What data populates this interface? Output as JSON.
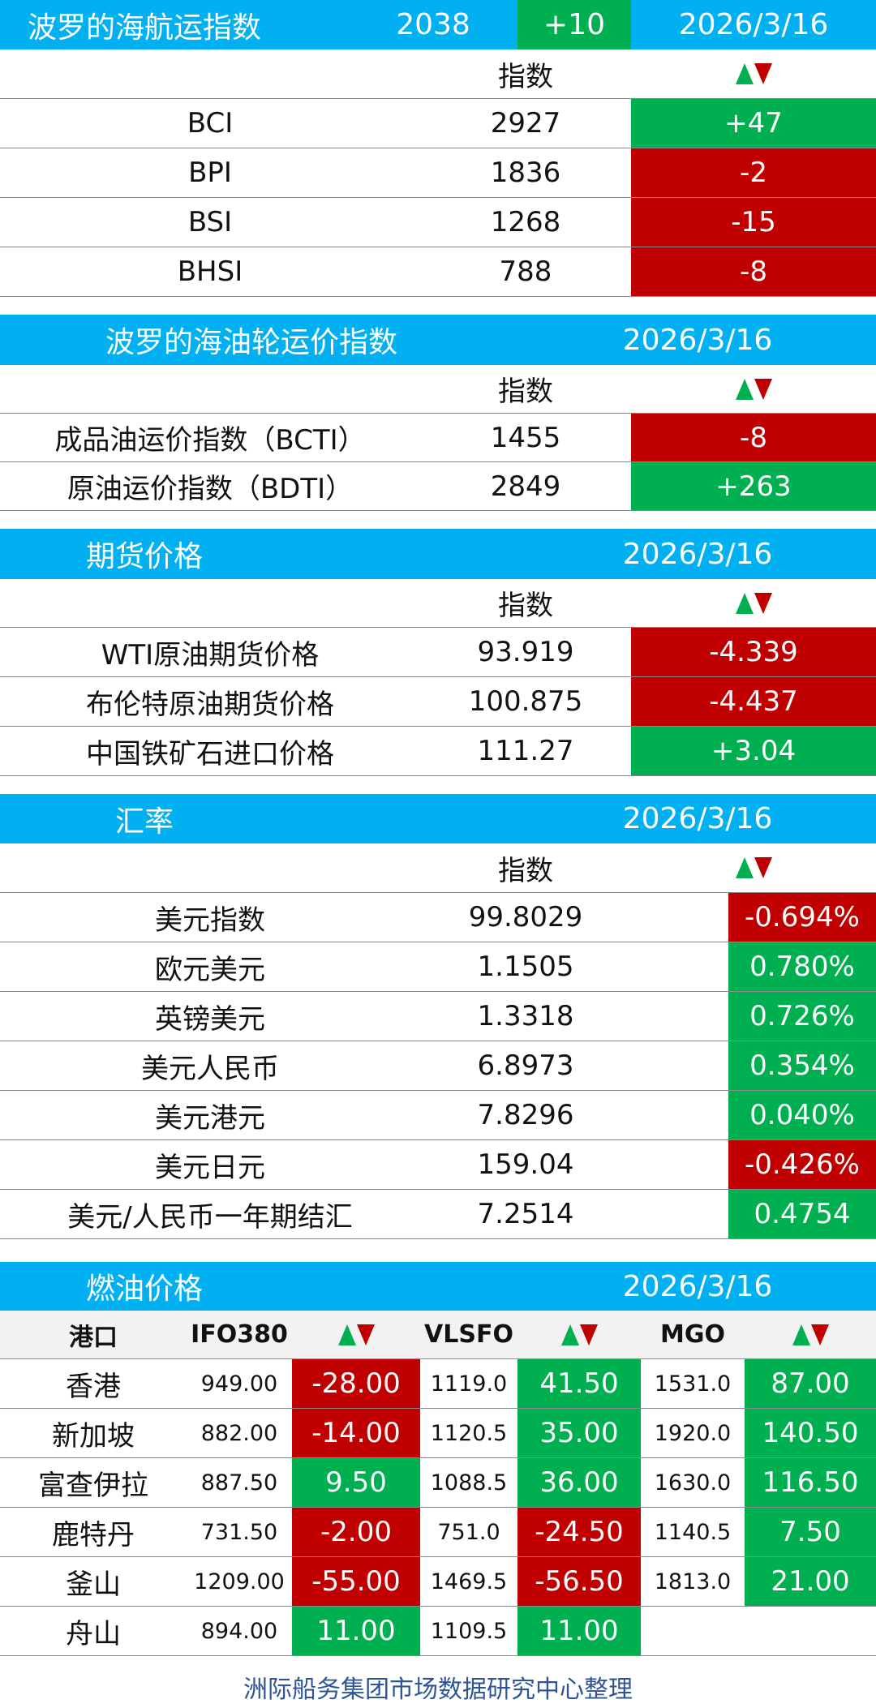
{
  "baltic_dry": {
    "title": "波罗的海航运指数",
    "index_value": "2038",
    "index_change": "+10",
    "date": "2026/3/16",
    "col_index": "指数",
    "rows": [
      {
        "name": "BCI",
        "value": "2927",
        "change": "+47",
        "dir": "up"
      },
      {
        "name": "BPI",
        "value": "1836",
        "change": "-2",
        "dir": "down"
      },
      {
        "name": "BSI",
        "value": "1268",
        "change": "-15",
        "dir": "down"
      },
      {
        "name": "BHSI",
        "value": "788",
        "change": "-8",
        "dir": "down"
      }
    ]
  },
  "baltic_tanker": {
    "title": "波罗的海油轮运价指数",
    "date": "2026/3/16",
    "col_index": "指数",
    "rows": [
      {
        "name": "成品油运价指数（BCTI）",
        "value": "1455",
        "change": "-8",
        "dir": "down"
      },
      {
        "name": "原油运价指数（BDTI）",
        "value": "2849",
        "change": "+263",
        "dir": "up"
      }
    ]
  },
  "futures": {
    "title": "期货价格",
    "date": "2026/3/16",
    "col_index": "指数",
    "rows": [
      {
        "name": "WTI原油期货价格",
        "value": "93.919",
        "change": "-4.339",
        "dir": "down"
      },
      {
        "name": "布伦特原油期货价格",
        "value": "100.875",
        "change": "-4.437",
        "dir": "down"
      },
      {
        "name": "中国铁矿石进口价格",
        "value": "111.27",
        "change": "+3.04",
        "dir": "up"
      }
    ]
  },
  "fx": {
    "title": "汇率",
    "date": "2026/3/16",
    "col_index": "指数",
    "rows": [
      {
        "name": "美元指数",
        "value": "99.8029",
        "change": "-0.694%",
        "dir": "down"
      },
      {
        "name": "欧元美元",
        "value": "1.1505",
        "change": "0.780%",
        "dir": "up"
      },
      {
        "name": "英镑美元",
        "value": "1.3318",
        "change": "0.726%",
        "dir": "up"
      },
      {
        "name": "美元人民币",
        "value": "6.8973",
        "change": "0.354%",
        "dir": "up"
      },
      {
        "name": "美元港元",
        "value": "7.8296",
        "change": "0.040%",
        "dir": "up"
      },
      {
        "name": "美元日元",
        "value": "159.04",
        "change": "-0.426%",
        "dir": "down"
      },
      {
        "name": "美元/人民币一年期结汇",
        "value": "7.2514",
        "change": "0.4754",
        "dir": "up"
      }
    ]
  },
  "fuel": {
    "title": "燃油价格",
    "date": "2026/3/16",
    "headers": {
      "port": "港口",
      "ifo": "IFO380",
      "vlsfo": "VLSFO",
      "mgo": "MGO"
    },
    "rows": [
      {
        "port": "香港",
        "ifo": "949.00",
        "ifo_chg": "-28.00",
        "ifo_dir": "down",
        "vlsfo": "1119.0",
        "vlsfo_chg": "41.50",
        "vlsfo_dir": "up",
        "mgo": "1531.0",
        "mgo_chg": "87.00",
        "mgo_dir": "up"
      },
      {
        "port": "新加坡",
        "ifo": "882.00",
        "ifo_chg": "-14.00",
        "ifo_dir": "down",
        "vlsfo": "1120.5",
        "vlsfo_chg": "35.00",
        "vlsfo_dir": "up",
        "mgo": "1920.0",
        "mgo_chg": "140.50",
        "mgo_dir": "up"
      },
      {
        "port": "富查伊拉",
        "ifo": "887.50",
        "ifo_chg": "9.50",
        "ifo_dir": "up",
        "vlsfo": "1088.5",
        "vlsfo_chg": "36.00",
        "vlsfo_dir": "up",
        "mgo": "1630.0",
        "mgo_chg": "116.50",
        "mgo_dir": "up"
      },
      {
        "port": "鹿特丹",
        "ifo": "731.50",
        "ifo_chg": "-2.00",
        "ifo_dir": "down",
        "vlsfo": "751.0",
        "vlsfo_chg": "-24.50",
        "vlsfo_dir": "down",
        "mgo": "1140.5",
        "mgo_chg": "7.50",
        "mgo_dir": "up"
      },
      {
        "port": "釜山",
        "ifo": "1209.00",
        "ifo_chg": "-55.00",
        "ifo_dir": "down",
        "vlsfo": "1469.5",
        "vlsfo_chg": "-56.50",
        "vlsfo_dir": "down",
        "mgo": "1813.0",
        "mgo_chg": "21.00",
        "mgo_dir": "up"
      },
      {
        "port": "舟山",
        "ifo": "894.00",
        "ifo_chg": "11.00",
        "ifo_dir": "up",
        "vlsfo": "1109.5",
        "vlsfo_chg": "11.00",
        "vlsfo_dir": "up",
        "mgo": "",
        "mgo_chg": "",
        "mgo_dir": ""
      }
    ]
  },
  "colors": {
    "header_blue": "#00b0f0",
    "up_green": "#00b050",
    "down_red": "#c00000",
    "footer_blue": "#2e5597"
  },
  "footer": "洲际船务集团市场数据研究中心整理"
}
